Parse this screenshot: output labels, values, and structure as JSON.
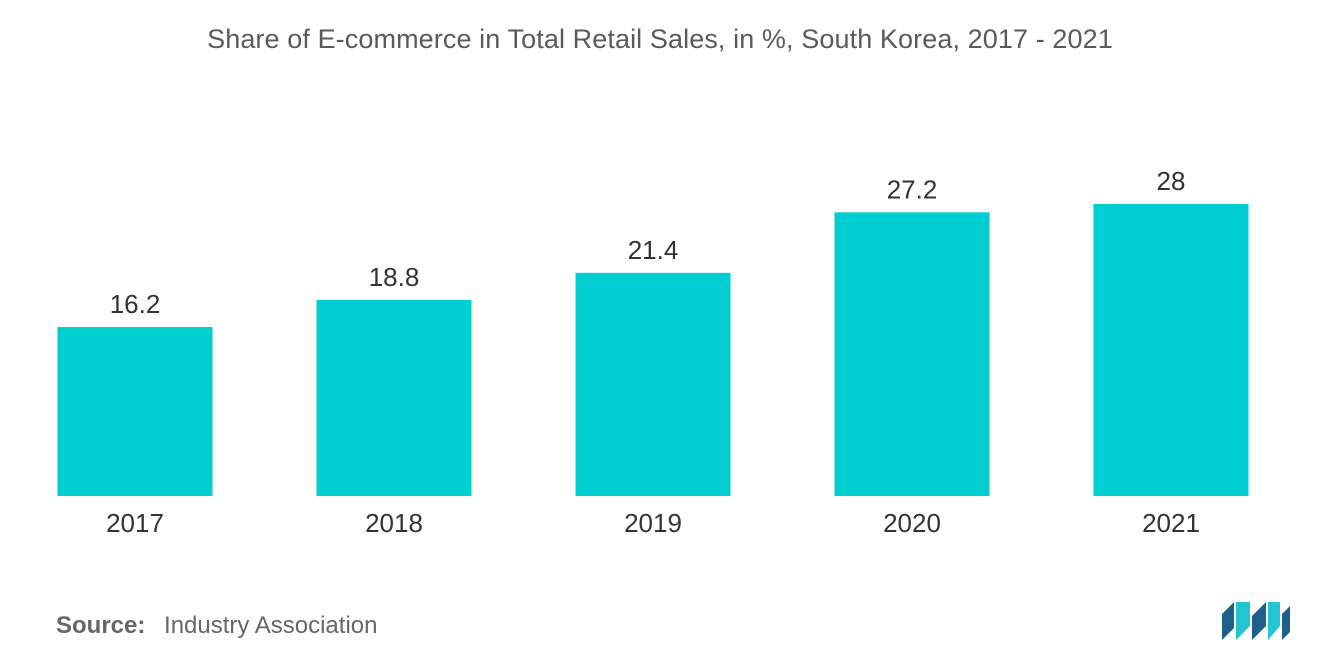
{
  "chart_data": {
    "type": "bar",
    "title": "Share of E-commerce in Total Retail Sales, in %, South Korea, 2017 - 2021",
    "categories": [
      "2017",
      "2018",
      "2019",
      "2020",
      "2021"
    ],
    "values": [
      16.2,
      18.8,
      21.4,
      27.2,
      28
    ],
    "value_labels": [
      "16.2",
      "18.8",
      "21.4",
      "27.2",
      "28"
    ],
    "xlabel": "",
    "ylabel": "",
    "ylim": [
      0,
      28
    ],
    "grid": false,
    "bar_color": "#00CED1"
  },
  "source": {
    "label": "Source:",
    "text": "Industry Association"
  },
  "logo": {
    "icon": "mordor-intelligence-logo",
    "colors": [
      "#1f5f8b",
      "#23c5d0"
    ]
  }
}
